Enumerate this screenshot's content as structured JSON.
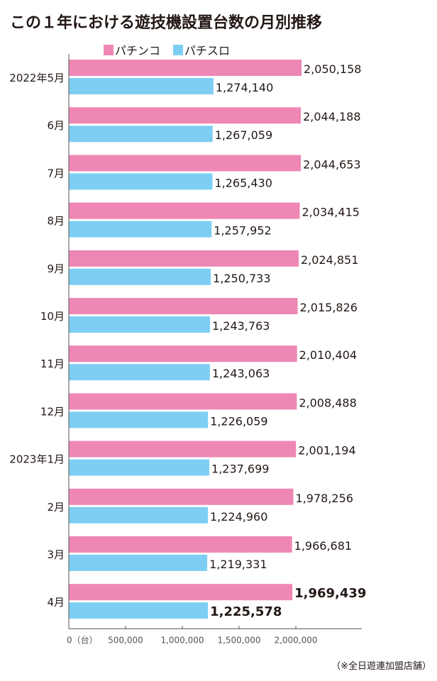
{
  "title": "この１年における遊技機設置台数の月別推移",
  "source_note": "（※全日遊連加盟店舗）",
  "colors": {
    "pachinko": "#ee87b4",
    "pachislot": "#7ecef4",
    "axis": "#555555",
    "text": "#231815"
  },
  "chart_data": {
    "type": "bar",
    "orientation": "horizontal",
    "title": "この１年における遊技機設置台数の月別推移",
    "categories": [
      "2022年5月",
      "6月",
      "7月",
      "8月",
      "9月",
      "10月",
      "11月",
      "12月",
      "2023年1月",
      "2月",
      "3月",
      "4月"
    ],
    "series": [
      {
        "name": "パチンコ",
        "color": "#ee87b4",
        "values": [
          2050158,
          2044188,
          2044653,
          2034415,
          2024851,
          2015826,
          2010404,
          2008488,
          2001194,
          1978256,
          1966681,
          1969439
        ],
        "labels": [
          "2,050,158",
          "2,044,188",
          "2,044,653",
          "2,034,415",
          "2,024,851",
          "2,015,826",
          "2,010,404",
          "2,008,488",
          "2,001,194",
          "1,978,256",
          "1,966,681",
          "1,969,439"
        ]
      },
      {
        "name": "パチスロ",
        "color": "#7ecef4",
        "values": [
          1274140,
          1267059,
          1265430,
          1257952,
          1250733,
          1243763,
          1243063,
          1226059,
          1237699,
          1224960,
          1219331,
          1225578
        ],
        "labels": [
          "1,274,140",
          "1,267,059",
          "1,265,430",
          "1,257,952",
          "1,250,733",
          "1,243,763",
          "1,243,063",
          "1,226,059",
          "1,237,699",
          "1,224,960",
          "1,219,331",
          "1,225,578"
        ]
      }
    ],
    "xlim": [
      0,
      2400000
    ],
    "xticks": [
      0,
      500000,
      1000000,
      1500000,
      2000000
    ],
    "xtick_labels": [
      "0（台）",
      "500,000",
      "1,000,000",
      "1,500,000",
      "2,000,000"
    ],
    "xlabel": "",
    "ylabel": "",
    "legend": "top-left",
    "grid": false,
    "emphasized_category": "4月"
  }
}
